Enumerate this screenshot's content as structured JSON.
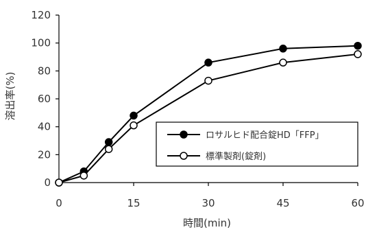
{
  "chart_data": {
    "type": "line",
    "title": "",
    "xlabel": "時間(min)",
    "ylabel": "溶出率(%)",
    "x": [
      0,
      5,
      10,
      15,
      30,
      45,
      60
    ],
    "xticks": [
      "0",
      "15",
      "30",
      "45",
      "60"
    ],
    "xlim": [
      0,
      60
    ],
    "yticks": [
      "0",
      "20",
      "40",
      "60",
      "80",
      "100",
      "120"
    ],
    "ylim": [
      0,
      120
    ],
    "grid": false,
    "legend_position": "center-right",
    "series": [
      {
        "name": "ロサルヒド配合錠HD「FFP」",
        "marker": "filled-circle",
        "color": "#000000",
        "values": [
          0,
          8,
          29,
          48,
          86,
          96,
          98
        ]
      },
      {
        "name": "標準製剤(錠剤)",
        "marker": "open-circle",
        "color": "#000000",
        "values": [
          0,
          5,
          24,
          41,
          73,
          86,
          92
        ]
      }
    ]
  }
}
